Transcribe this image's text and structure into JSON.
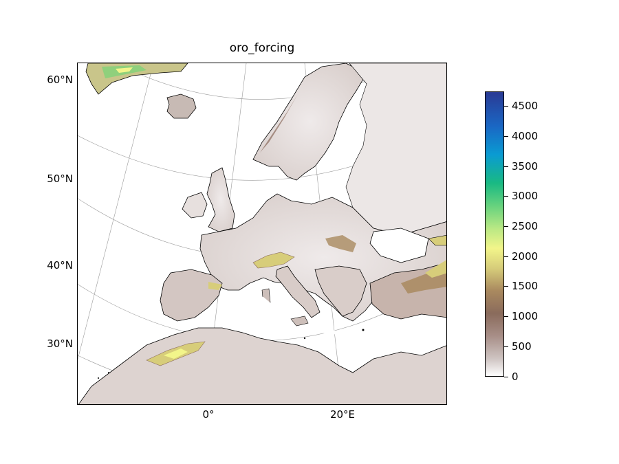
{
  "title": "oro_forcing",
  "lat_labels": [
    "60°N",
    "50°N",
    "40°N",
    "30°N"
  ],
  "lon_labels": [
    "0°",
    "20°E"
  ],
  "colorbar": {
    "ticks": [
      "0",
      "500",
      "1000",
      "1500",
      "2000",
      "2500",
      "3000",
      "3500",
      "4000",
      "4500"
    ],
    "min": 0,
    "max": 4750,
    "colormap": "terrain_r"
  },
  "colors": {
    "lowland": "#ffffff",
    "hills": "#8a6b5c",
    "mountains": "#f2f58a",
    "high_mountains": "#19b983",
    "peaks": "#2a3a94"
  }
}
